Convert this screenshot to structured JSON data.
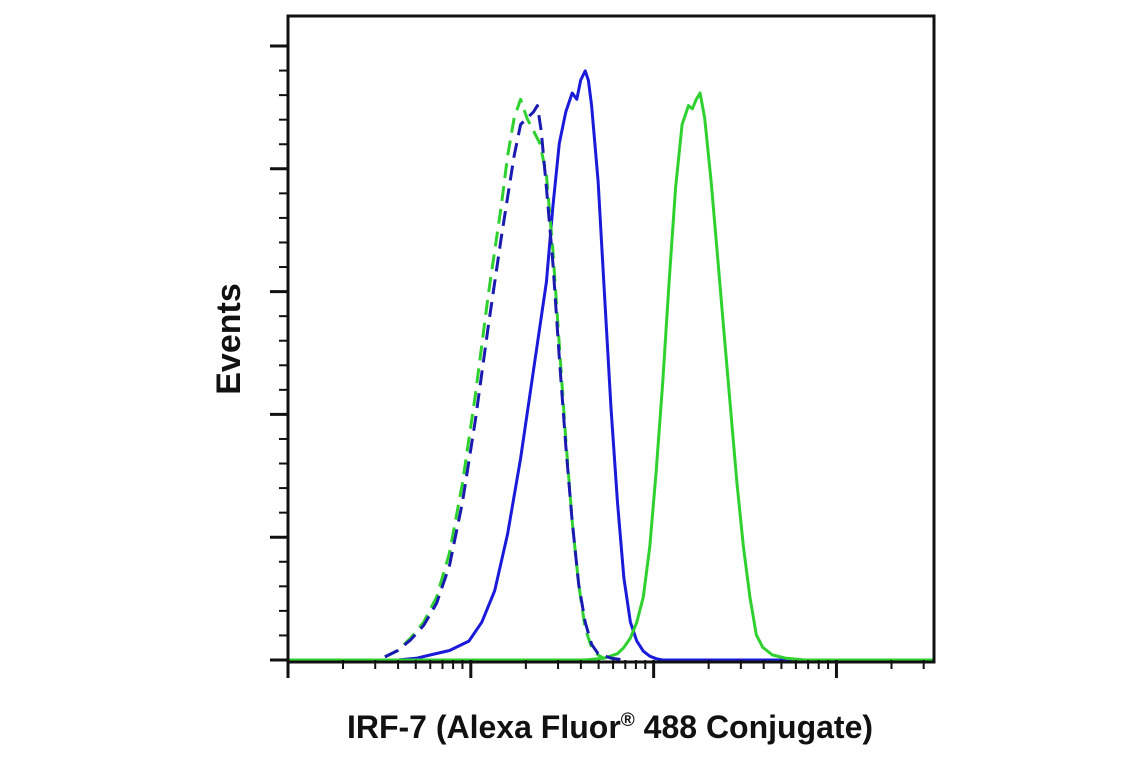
{
  "chart_data": {
    "type": "line",
    "title": "",
    "xlabel_main": "IRF-7 (Alexa Fluor",
    "xlabel_reg": "®",
    "xlabel_rest": " 488 Conjugate)",
    "ylabel": "Events",
    "x_scale": "log",
    "xlim": [
      0,
      100
    ],
    "ylim": [
      0,
      100
    ],
    "grid": false,
    "legend": "none",
    "series": [
      {
        "color": "#1a1adb",
        "dash": "solid",
        "points": [
          [
            0,
            0
          ],
          [
            17,
            0
          ],
          [
            20,
            0.3
          ],
          [
            22,
            0.8
          ],
          [
            25,
            1.5
          ],
          [
            28,
            3
          ],
          [
            30,
            6
          ],
          [
            32,
            11
          ],
          [
            34,
            20
          ],
          [
            36,
            32
          ],
          [
            38,
            46
          ],
          [
            40,
            60
          ],
          [
            41,
            72
          ],
          [
            42,
            82
          ],
          [
            43,
            87
          ],
          [
            44,
            90
          ],
          [
            44.7,
            89
          ],
          [
            45.3,
            92
          ],
          [
            46,
            93.5
          ],
          [
            46.5,
            92
          ],
          [
            47,
            88
          ],
          [
            48,
            76
          ],
          [
            49,
            58
          ],
          [
            50,
            40
          ],
          [
            51,
            25
          ],
          [
            52,
            13
          ],
          [
            53,
            6
          ],
          [
            54,
            3
          ],
          [
            55,
            1.4
          ],
          [
            56,
            0.6
          ],
          [
            57,
            0.2
          ],
          [
            58,
            0
          ],
          [
            100,
            0
          ]
        ]
      },
      {
        "color": "#2fd12f",
        "dash": "solid",
        "points": [
          [
            0,
            0
          ],
          [
            46,
            0
          ],
          [
            49,
            0.3
          ],
          [
            51,
            1
          ],
          [
            52,
            2
          ],
          [
            53,
            3.5
          ],
          [
            54,
            6
          ],
          [
            55,
            10
          ],
          [
            56,
            18
          ],
          [
            57,
            30
          ],
          [
            58,
            44
          ],
          [
            59,
            60
          ],
          [
            60,
            75
          ],
          [
            61,
            85
          ],
          [
            62,
            88
          ],
          [
            62.6,
            87.5
          ],
          [
            63.2,
            89
          ],
          [
            63.8,
            90
          ],
          [
            64.5,
            86
          ],
          [
            65.5,
            76
          ],
          [
            66.5,
            64
          ],
          [
            67.5,
            52
          ],
          [
            68.5,
            40
          ],
          [
            69.5,
            28
          ],
          [
            70.5,
            18
          ],
          [
            71.5,
            10
          ],
          [
            72.5,
            4
          ],
          [
            73.5,
            2
          ],
          [
            75,
            0.8
          ],
          [
            77,
            0.3
          ],
          [
            80,
            0
          ],
          [
            100,
            0
          ]
        ]
      },
      {
        "color": "#2fd12f",
        "dash": "dashed",
        "points": [
          [
            15,
            0.5
          ],
          [
            17,
            1.5
          ],
          [
            19,
            3.5
          ],
          [
            21,
            6
          ],
          [
            23,
            10
          ],
          [
            25,
            17
          ],
          [
            27,
            28
          ],
          [
            29,
            42
          ],
          [
            31,
            58
          ],
          [
            33,
            72
          ],
          [
            34,
            80
          ],
          [
            35,
            86
          ],
          [
            36,
            89
          ],
          [
            37,
            86
          ],
          [
            38,
            84
          ],
          [
            39,
            82
          ],
          [
            40,
            77
          ],
          [
            41,
            65
          ],
          [
            42,
            50
          ],
          [
            43,
            35
          ],
          [
            44,
            22
          ],
          [
            45,
            12
          ],
          [
            46,
            5
          ],
          [
            47,
            2
          ],
          [
            48,
            0.8
          ],
          [
            49,
            0.2
          ]
        ]
      },
      {
        "color": "#1a1ab0",
        "dash": "dashed",
        "points": [
          [
            15,
            0.5
          ],
          [
            17,
            1.5
          ],
          [
            19,
            3.2
          ],
          [
            21,
            5.5
          ],
          [
            23,
            9
          ],
          [
            25,
            15
          ],
          [
            27,
            25
          ],
          [
            29,
            38
          ],
          [
            31,
            53
          ],
          [
            33,
            67
          ],
          [
            35,
            80
          ],
          [
            36,
            85
          ],
          [
            37,
            86
          ],
          [
            38,
            87
          ],
          [
            38.6,
            88
          ],
          [
            39.2,
            84
          ],
          [
            40,
            75
          ],
          [
            41,
            63
          ],
          [
            42,
            48
          ],
          [
            43,
            34
          ],
          [
            44,
            22
          ],
          [
            45,
            12
          ],
          [
            46,
            6
          ],
          [
            47,
            2.5
          ],
          [
            48,
            1
          ],
          [
            50,
            0.3
          ],
          [
            52,
            0
          ]
        ]
      }
    ]
  }
}
